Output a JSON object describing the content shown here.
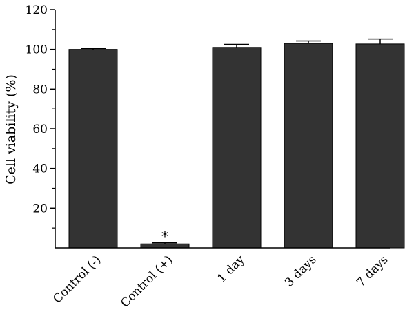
{
  "chart_data": {
    "type": "bar",
    "title": "",
    "xlabel": "",
    "ylabel": "Cell viability (%)",
    "ylim": [
      0,
      120
    ],
    "yticks": [
      20,
      40,
      60,
      80,
      100,
      120
    ],
    "categories": [
      "Control (-)",
      "Control (+)",
      "1 day",
      "3 days",
      "7 days"
    ],
    "values": [
      100,
      2,
      101,
      103,
      102.7
    ],
    "errors": [
      0.5,
      0.5,
      1.5,
      1.2,
      2.5
    ],
    "annotations": [
      {
        "category": "Control (+)",
        "text": "*"
      }
    ],
    "bar_color": "#333333",
    "grid": false,
    "legend": "none"
  }
}
